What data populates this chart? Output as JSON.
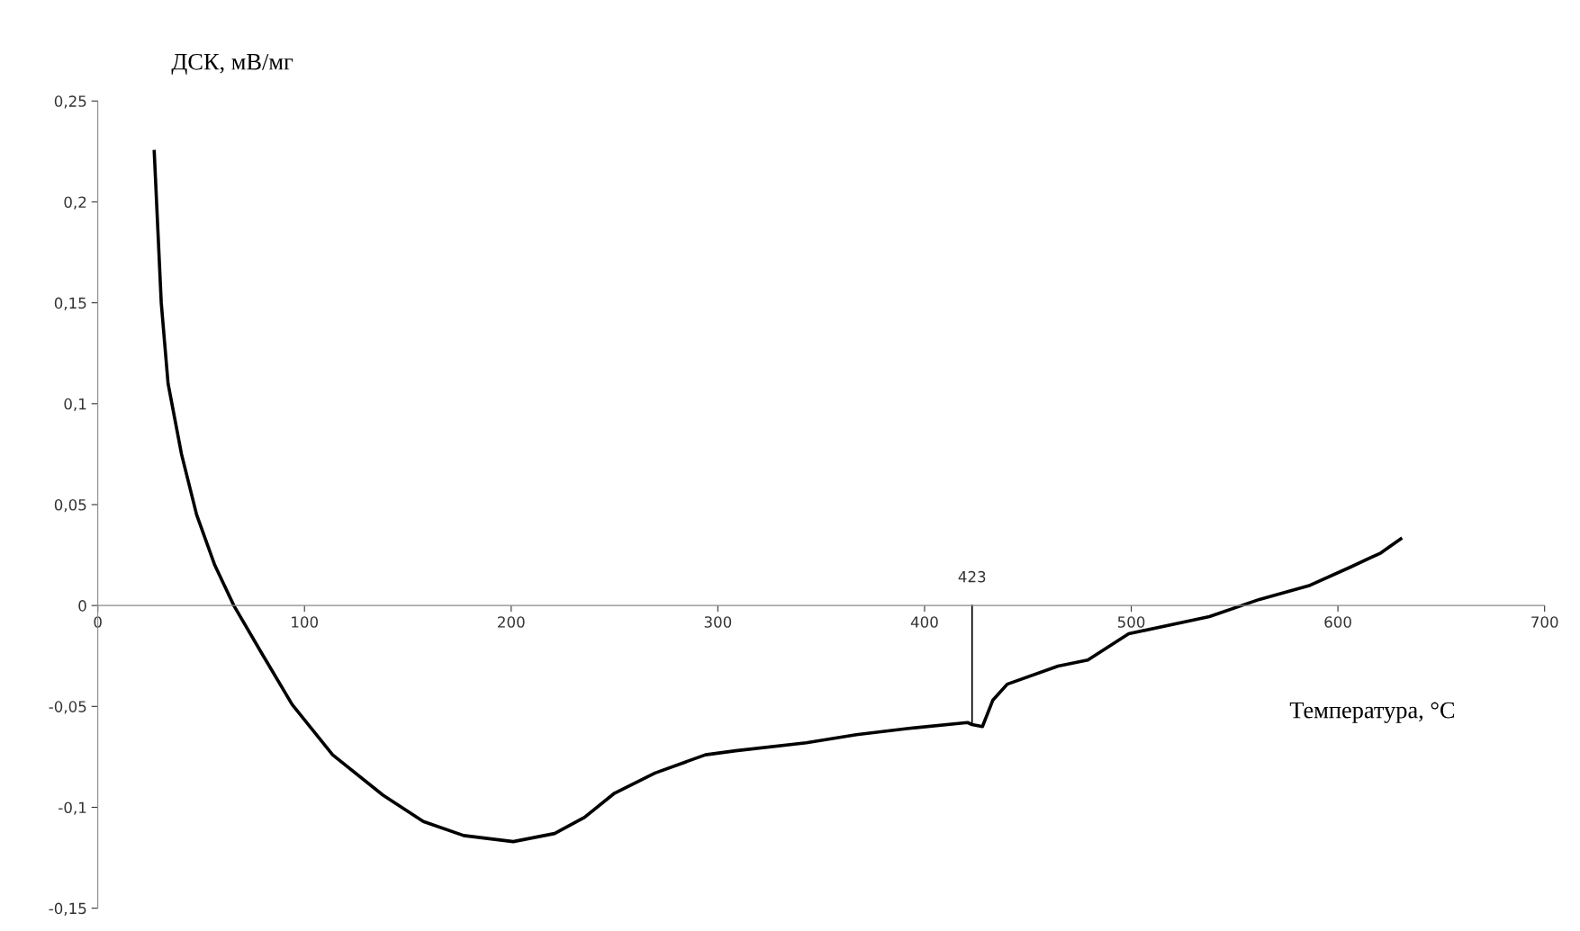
{
  "chart_data": {
    "type": "line",
    "xlabel": "Температура, °C",
    "ylabel": "ДСК, мВ/мг",
    "xlim": [
      0,
      700
    ],
    "xticks": [
      0,
      100,
      200,
      300,
      400,
      500,
      600,
      700
    ],
    "ylim": [
      -0.15,
      0.25
    ],
    "yticks": [
      {
        "value": -0.15,
        "label": "-0,15"
      },
      {
        "value": -0.1,
        "label": "-0,1"
      },
      {
        "value": -0.05,
        "label": "-0,05"
      },
      0,
      {
        "value": 0.05,
        "label": "0,05"
      },
      {
        "value": 0.1,
        "label": "0,1"
      },
      {
        "value": 0.15,
        "label": "0,15"
      },
      {
        "value": 0.2,
        "label": "0,2"
      },
      {
        "value": 0.25,
        "label": "0,25"
      }
    ],
    "grid": false,
    "legend": false,
    "marker": "none",
    "line_style": "solid",
    "ref_lines": [
      {
        "axis": "x",
        "value": 423,
        "label": "423",
        "color": "#000000"
      }
    ],
    "series": [
      {
        "color": "#000000",
        "x": [
          27.3,
          30.7,
          34,
          40.5,
          47.8,
          56.6,
          65.8,
          79.5,
          94,
          113.6,
          138,
          157.5,
          177,
          201,
          221,
          235.5,
          250,
          269.6,
          294,
          308.6,
          342.8,
          367,
          391.5,
          420.8,
          423,
          428,
          433,
          440,
          464.6,
          479,
          498.8,
          537.8,
          562,
          586.5,
          606,
          620.7,
          630.4
        ],
        "values": [
          0.225,
          0.15,
          0.11,
          0.075,
          0.045,
          0.02,
          0,
          -0.024,
          -0.049,
          -0.074,
          -0.094,
          -0.107,
          -0.114,
          -0.117,
          -0.113,
          -0.105,
          -0.093,
          -0.083,
          -0.074,
          -0.072,
          -0.068,
          -0.064,
          -0.061,
          -0.058,
          -0.059,
          -0.06,
          -0.047,
          -0.039,
          -0.03,
          -0.027,
          -0.014,
          -0.0055,
          0.003,
          0.01,
          0.019,
          0.026,
          0.033
        ]
      }
    ]
  }
}
